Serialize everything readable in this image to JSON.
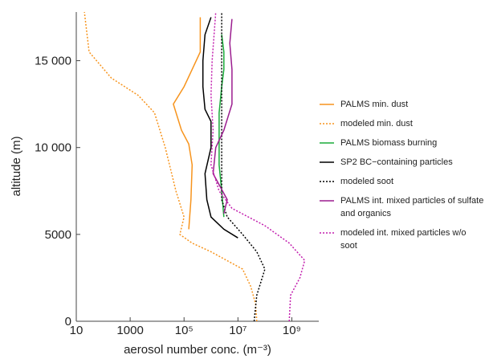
{
  "chart_data": {
    "type": "line",
    "xlabel": "aerosol number conc. (m⁻³)",
    "ylabel": "altitude (m)",
    "xscale": "log",
    "xlim": [
      10,
      10000000000
    ],
    "ylim": [
      0,
      17800
    ],
    "xticks": [
      10,
      1000,
      {
        "value": 100000,
        "label": "10⁵"
      },
      {
        "value": 10000000,
        "label": "10⁷"
      },
      {
        "value": 1000000000,
        "label": "10⁹"
      }
    ],
    "yticks": [
      0,
      5000,
      {
        "value": 10000,
        "label": "10 000"
      },
      {
        "value": 15000,
        "label": "15 000"
      }
    ],
    "series": [
      {
        "name": "PALMS min. dust",
        "color": "#f7941d",
        "dash": false,
        "x": [
          150000,
          180000,
          200000,
          150000,
          80000,
          40000,
          100000,
          200000,
          400000,
          400000
        ],
        "y": [
          5300,
          7000,
          9000,
          10200,
          11000,
          12500,
          13500,
          14500,
          15500,
          17500
        ]
      },
      {
        "name": "modeled min. dust",
        "color": "#f7941d",
        "dash": true,
        "x": [
          50000000,
          45000000,
          30000000,
          15000000,
          1000000,
          200000,
          70000,
          100000,
          50000,
          20000,
          8000,
          2000,
          200,
          30,
          20
        ],
        "y": [
          0,
          1000,
          2000,
          3000,
          4000,
          4500,
          5000,
          6000,
          7500,
          10000,
          12000,
          13000,
          14000,
          15500,
          17800
        ]
      },
      {
        "name": "PALMS biomass burning",
        "color": "#1aab3a",
        "dash": false,
        "x": [
          3000000,
          2500000,
          2000000,
          2000000,
          2000000,
          2500000,
          3000000,
          3000000,
          2500000
        ],
        "y": [
          6000,
          7500,
          9000,
          10500,
          12000,
          13500,
          14500,
          15500,
          16500
        ]
      },
      {
        "name": "SP2 BC−containing particles",
        "color": "#000000",
        "dash": false,
        "x": [
          10000000,
          3000000,
          1000000,
          700000,
          600000,
          1000000,
          1000000,
          600000,
          500000,
          500000,
          600000,
          1000000
        ],
        "y": [
          4800,
          5300,
          6000,
          7000,
          8500,
          10000,
          11500,
          12200,
          13500,
          15000,
          16500,
          17500
        ]
      },
      {
        "name": "modeled soot",
        "color": "#000000",
        "dash": true,
        "x": [
          40000000,
          50000000,
          100000000,
          50000000,
          15000000,
          4000000,
          2500000,
          2500000,
          2500000,
          2500000
        ],
        "y": [
          0,
          1500,
          3000,
          4000,
          5000,
          6000,
          7000,
          10000,
          14000,
          17800
        ]
      },
      {
        "name": "PALMS int. mixed particles of sulfate and organics",
        "color": "#9b1d8f",
        "dash": false,
        "x": [
          3000000,
          4000000,
          1200000,
          1500000,
          3000000,
          6000000,
          6000000,
          5000000,
          6000000
        ],
        "y": [
          6200,
          7000,
          8500,
          10000,
          11000,
          12500,
          14500,
          16000,
          17400
        ]
      },
      {
        "name": "modeled int. mixed particles w/o soot",
        "color": "#c21fae",
        "dash": true,
        "x": [
          800000000,
          900000000,
          2000000000,
          3000000000,
          800000000,
          100000000,
          6000000,
          2000000,
          1000000,
          1200000,
          1000000,
          1100000,
          1500000
        ],
        "y": [
          0,
          1500,
          2500,
          3500,
          4500,
          5500,
          6500,
          7500,
          9000,
          11000,
          13000,
          15000,
          17800
        ]
      }
    ]
  }
}
